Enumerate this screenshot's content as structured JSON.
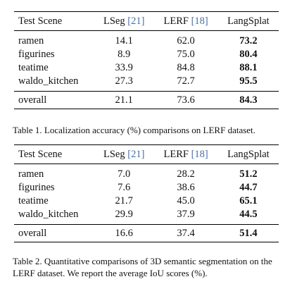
{
  "tables": [
    {
      "columns": [
        {
          "label": "Test Scene",
          "cite": ""
        },
        {
          "label": "LSeg ",
          "cite": "[21]"
        },
        {
          "label": "LERF ",
          "cite": "[18]"
        },
        {
          "label": "LangSplat",
          "cite": ""
        }
      ],
      "rows": [
        {
          "scene": "ramen",
          "lseg": "14.1",
          "lerf": "62.0",
          "langsplat": "73.2"
        },
        {
          "scene": "figurines",
          "lseg": "8.9",
          "lerf": "75.0",
          "langsplat": "80.4"
        },
        {
          "scene": "teatime",
          "lseg": "33.9",
          "lerf": "84.8",
          "langsplat": "88.1"
        },
        {
          "scene": "waldo_kitchen",
          "lseg": "27.3",
          "lerf": "72.7",
          "langsplat": "95.5"
        }
      ],
      "overall": {
        "scene": "overall",
        "lseg": "21.1",
        "lerf": "73.6",
        "langsplat": "84.3"
      },
      "caption": "Table 1. Localization accuracy (%) comparisons on LERF dataset."
    },
    {
      "columns": [
        {
          "label": "Test Scene",
          "cite": ""
        },
        {
          "label": "LSeg ",
          "cite": "[21]"
        },
        {
          "label": "LERF ",
          "cite": "[18]"
        },
        {
          "label": "LangSplat",
          "cite": ""
        }
      ],
      "rows": [
        {
          "scene": "ramen",
          "lseg": "7.0",
          "lerf": "28.2",
          "langsplat": "51.2"
        },
        {
          "scene": "figurines",
          "lseg": "7.6",
          "lerf": "38.6",
          "langsplat": "44.7"
        },
        {
          "scene": "teatime",
          "lseg": "21.7",
          "lerf": "45.0",
          "langsplat": "65.1"
        },
        {
          "scene": "waldo_kitchen",
          "lseg": "29.9",
          "lerf": "37.9",
          "langsplat": "44.5"
        }
      ],
      "overall": {
        "scene": "overall",
        "lseg": "16.6",
        "lerf": "37.4",
        "langsplat": "51.4"
      },
      "caption": "Table 2. Quantitative comparisons of 3D semantic segmentation on the LERF dataset. We report the average IoU scores (%)."
    }
  ]
}
